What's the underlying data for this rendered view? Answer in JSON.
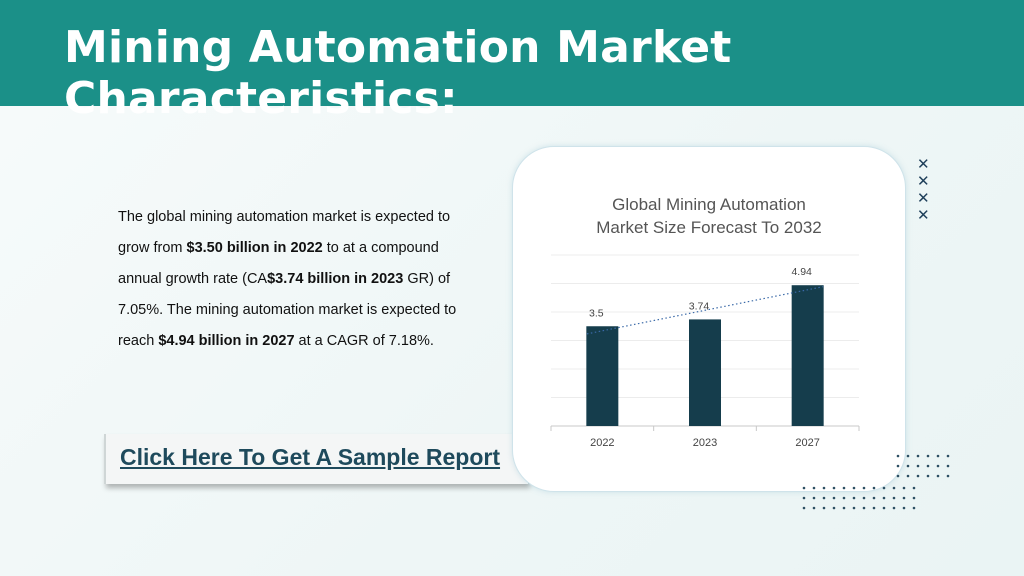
{
  "header": {
    "title": "Mining Automation Market Characteristics:"
  },
  "description": {
    "t1": "The global mining automation market is expected to grow from ",
    "b1": "$3.50 billion in 2022",
    "t2": " to at a compound annual growth rate (CA",
    "b2": "$3.74 billion in 2023",
    "t3": " GR) of 7.05%. The mining automation market is expected to reach ",
    "b3": "$4.94 billion in 2027",
    "t4": " at a CAGR of 7.18%."
  },
  "cta": {
    "label": "Click Here To Get A Sample Report"
  },
  "decor": {
    "x_icon": "✕",
    "x_count": 4
  },
  "colors": {
    "header": "#1b9088",
    "bar": "#153d4c",
    "trend": "#3b6aa8",
    "link": "#1e4a5c"
  },
  "chart_data": {
    "type": "bar",
    "title_line1": "Global Mining Automation",
    "title_line2": "Market Size Forecast To 2032",
    "categories": [
      "2022",
      "2023",
      "2027"
    ],
    "values": [
      3.5,
      3.74,
      4.94
    ],
    "data_labels": [
      "3.5",
      "3.74",
      "4.94"
    ],
    "ylim": [
      0,
      6
    ],
    "grid": true,
    "trendline": "linear"
  }
}
